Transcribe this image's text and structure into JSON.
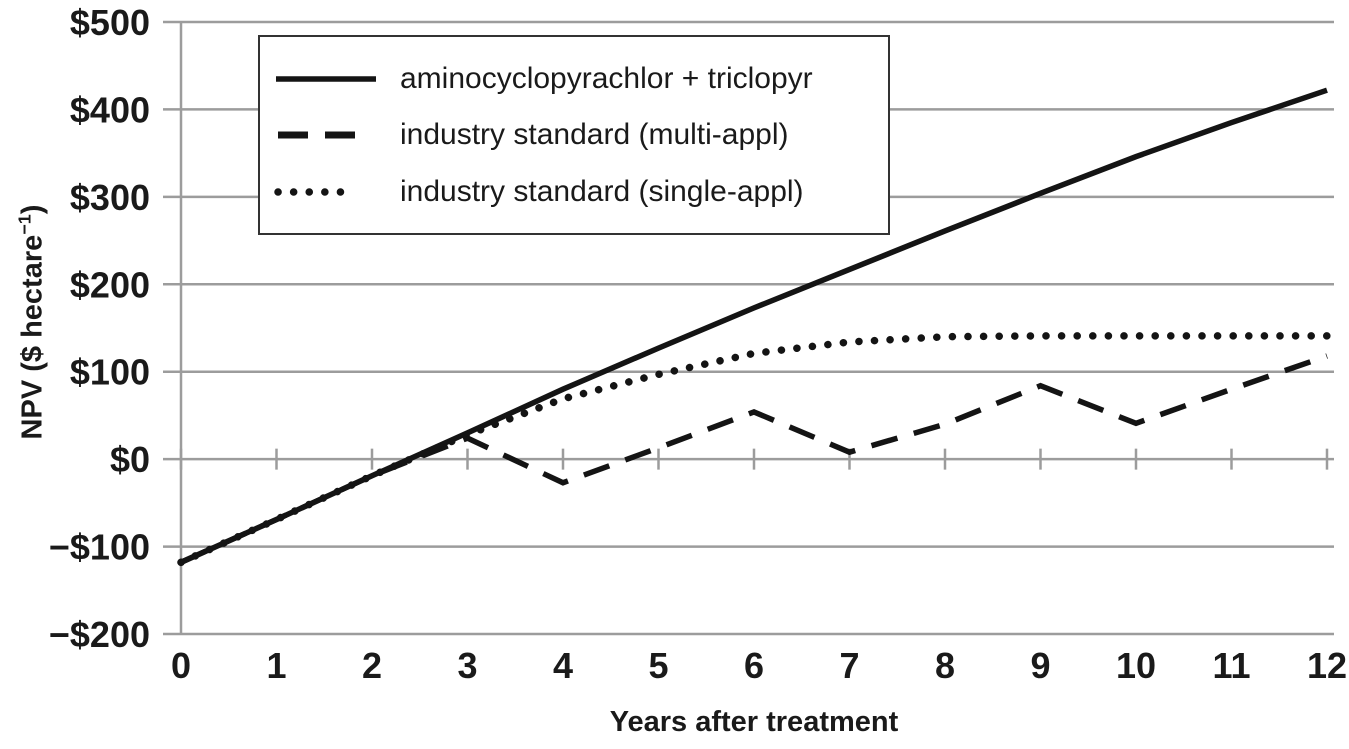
{
  "chart_data": {
    "type": "line",
    "title": "",
    "xlabel": "Years after treatment",
    "ylabel": "NPV ($ hectare⁻¹)",
    "ylabel_parts": {
      "prefix": "NPV ($ hectare",
      "sup": "−1",
      "suffix": ")"
    },
    "xlim": [
      0,
      12
    ],
    "ylim": [
      -200,
      500
    ],
    "grid": true,
    "legend_position": "top-left",
    "x_ticks": {
      "values": [
        0,
        1,
        2,
        3,
        4,
        5,
        6,
        7,
        8,
        9,
        10,
        11,
        12
      ],
      "labels": [
        "0",
        "1",
        "2",
        "3",
        "4",
        "5",
        "6",
        "7",
        "8",
        "9",
        "10",
        "11",
        "12"
      ]
    },
    "y_ticks": {
      "values": [
        500,
        400,
        300,
        200,
        100,
        0,
        -100,
        -200
      ],
      "labels": [
        "$500",
        "$400",
        "$300",
        "$200",
        "$100",
        "$0",
        "−$100",
        "−$200"
      ]
    },
    "x": [
      0,
      1,
      2,
      3,
      4,
      5,
      6,
      7,
      8,
      9,
      10,
      11,
      12
    ],
    "series": [
      {
        "name": "aminocyclopyrachlor + triclopyr",
        "key": "aminocyclopyrachlor-triclopyr",
        "style": "solid",
        "values": [
          -118,
          -69,
          -19,
          30,
          80,
          127,
          173,
          217,
          261,
          304,
          346,
          385,
          422
        ]
      },
      {
        "name": "industry standard (multi-appl)",
        "key": "industry-standard-multi-appl",
        "style": "dashed",
        "values": [
          -118,
          -69,
          -19,
          24,
          -27,
          13,
          54,
          8,
          40,
          84,
          41,
          80,
          118
        ]
      },
      {
        "name": "industry standard (single-appl)",
        "key": "industry-standard-single-appl",
        "style": "dotted",
        "values": [
          -118,
          -69,
          -19,
          28,
          69,
          97,
          121,
          134,
          140,
          141,
          141,
          141,
          141
        ]
      }
    ],
    "colors": {
      "text": "#1a1a1a",
      "grid": "#9c9c9c",
      "series": "#141414",
      "legend_border": "#333333",
      "background": "#ffffff"
    }
  }
}
